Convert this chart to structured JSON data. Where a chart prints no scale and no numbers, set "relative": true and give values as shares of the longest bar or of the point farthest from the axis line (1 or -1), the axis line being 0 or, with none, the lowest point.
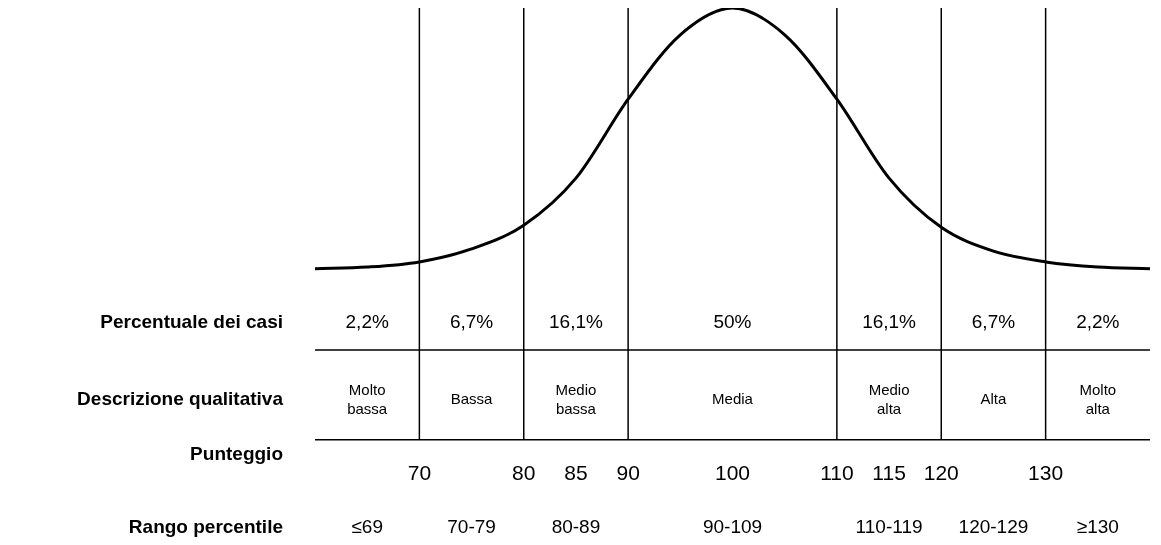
{
  "chart_data": {
    "type": "line",
    "relative": true,
    "xlabel": "Punteggio",
    "xlim": [
      60,
      140
    ],
    "xticks": [
      70,
      80,
      85,
      90,
      100,
      110,
      115,
      120,
      130
    ],
    "grid": false,
    "legend": false,
    "marker": "none",
    "series": [
      {
        "color": "#000000",
        "x": [
          60,
          65,
          70,
          75,
          80,
          85,
          90,
          95,
          100,
          105,
          110,
          115,
          120,
          125,
          130,
          135,
          140
        ],
        "values": [
          0.396,
          0.4,
          0.412,
          0.442,
          0.497,
          0.606,
          0.789,
          0.938,
          1,
          0.938,
          0.789,
          0.606,
          0.492,
          0.437,
          0.412,
          0.4,
          0.396
        ]
      }
    ],
    "ref_lines": [
      {
        "axis": "x",
        "value": 70
      },
      {
        "axis": "x",
        "value": 80
      },
      {
        "axis": "x",
        "value": 90
      },
      {
        "axis": "x",
        "value": 110
      },
      {
        "axis": "x",
        "value": 120
      },
      {
        "axis": "x",
        "value": 130
      }
    ],
    "annotations": [
      "Percentuale dei casi",
      "2,2%",
      "6,7%",
      "16,1%",
      "50%",
      "16,1%",
      "6,7%",
      "2,2%",
      "Descrizione qualitativa",
      "Molto\nbassa",
      "Bassa",
      "Medio\nbassa",
      "Media",
      "Medio\nalta",
      "Alta",
      "Molto\nalta",
      "Rango percentile",
      "≤69",
      "70-79",
      "80-89",
      "90-109",
      "110-119",
      "120-129",
      "≥130"
    ]
  }
}
